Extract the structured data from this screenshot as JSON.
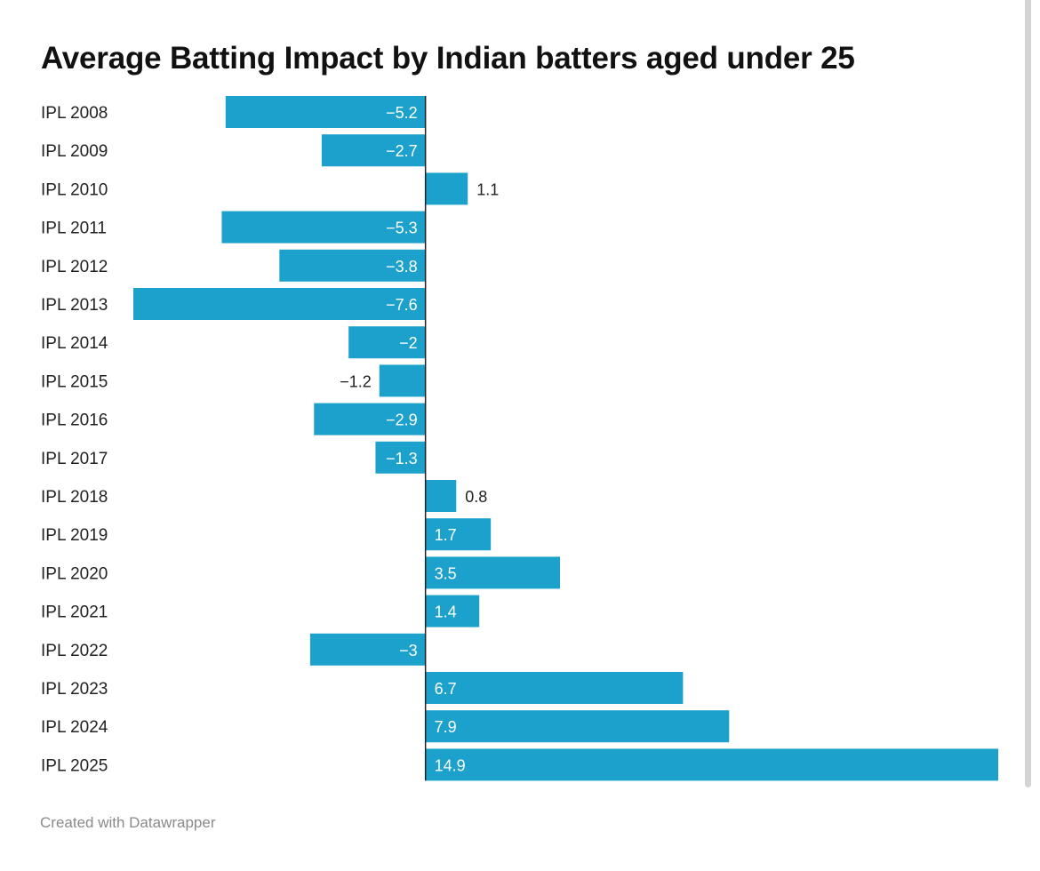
{
  "chart_data": {
    "type": "bar",
    "orientation": "horizontal",
    "title": "Average Batting Impact by Indian batters aged under 25",
    "categories": [
      "IPL 2008",
      "IPL 2009",
      "IPL 2010",
      "IPL 2011",
      "IPL 2012",
      "IPL 2013",
      "IPL 2014",
      "IPL 2015",
      "IPL 2016",
      "IPL 2017",
      "IPL 2018",
      "IPL 2019",
      "IPL 2020",
      "IPL 2021",
      "IPL 2022",
      "IPL 2023",
      "IPL 2024",
      "IPL 2025"
    ],
    "values": [
      -5.2,
      -2.7,
      1.1,
      -5.3,
      -3.8,
      -7.6,
      -2,
      -1.2,
      -2.9,
      -1.3,
      0.8,
      1.7,
      3.5,
      1.4,
      -3,
      6.7,
      7.9,
      14.9
    ],
    "value_labels": [
      "−5.2",
      "−2.7",
      "1.1",
      "−5.3",
      "−3.8",
      "−7.6",
      "−2",
      "−1.2",
      "−2.9",
      "−1.3",
      "0.8",
      "1.7",
      "3.5",
      "1.4",
      "−3",
      "6.7",
      "7.9",
      "14.9"
    ],
    "xlim": [
      -7.6,
      14.9
    ],
    "grid": false,
    "legend": "none",
    "bar_color": "#1ba1cc"
  },
  "footer": {
    "credit": "Created with Datawrapper"
  }
}
